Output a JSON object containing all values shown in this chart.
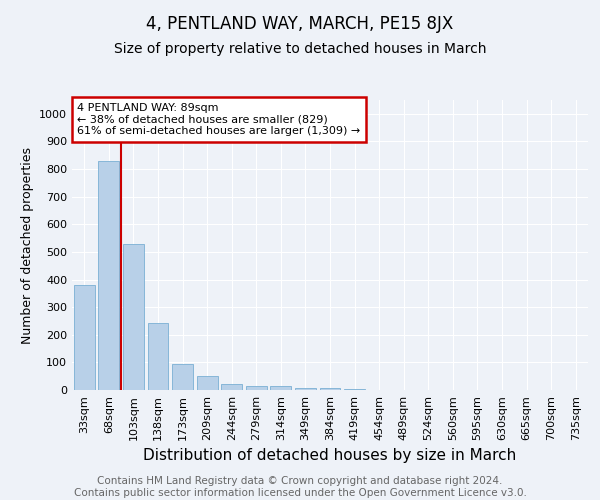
{
  "title": "4, PENTLAND WAY, MARCH, PE15 8JX",
  "subtitle": "Size of property relative to detached houses in March",
  "xlabel": "Distribution of detached houses by size in March",
  "ylabel": "Number of detached properties",
  "bar_color": "#b8d0e8",
  "bar_edge_color": "#7aafd4",
  "background_color": "#eef2f8",
  "grid_color": "#ffffff",
  "categories": [
    "33sqm",
    "68sqm",
    "103sqm",
    "138sqm",
    "173sqm",
    "209sqm",
    "244sqm",
    "279sqm",
    "314sqm",
    "349sqm",
    "384sqm",
    "419sqm",
    "454sqm",
    "489sqm",
    "524sqm",
    "560sqm",
    "595sqm",
    "630sqm",
    "665sqm",
    "700sqm",
    "735sqm"
  ],
  "values": [
    380,
    829,
    529,
    242,
    95,
    50,
    20,
    15,
    13,
    9,
    8,
    4,
    0,
    0,
    0,
    0,
    0,
    0,
    0,
    0,
    0
  ],
  "vline_x": 1.5,
  "ylim": [
    0,
    1050
  ],
  "yticks": [
    0,
    100,
    200,
    300,
    400,
    500,
    600,
    700,
    800,
    900,
    1000
  ],
  "annotation_text": "4 PENTLAND WAY: 89sqm\n← 38% of detached houses are smaller (829)\n61% of semi-detached houses are larger (1,309) →",
  "annotation_box_color": "#ffffff",
  "annotation_box_edge": "#cc0000",
  "vline_color": "#cc0000",
  "footer": "Contains HM Land Registry data © Crown copyright and database right 2024.\nContains public sector information licensed under the Open Government Licence v3.0.",
  "title_fontsize": 12,
  "subtitle_fontsize": 10,
  "xlabel_fontsize": 11,
  "ylabel_fontsize": 9,
  "tick_fontsize": 8,
  "annotation_fontsize": 8,
  "footer_fontsize": 7.5
}
